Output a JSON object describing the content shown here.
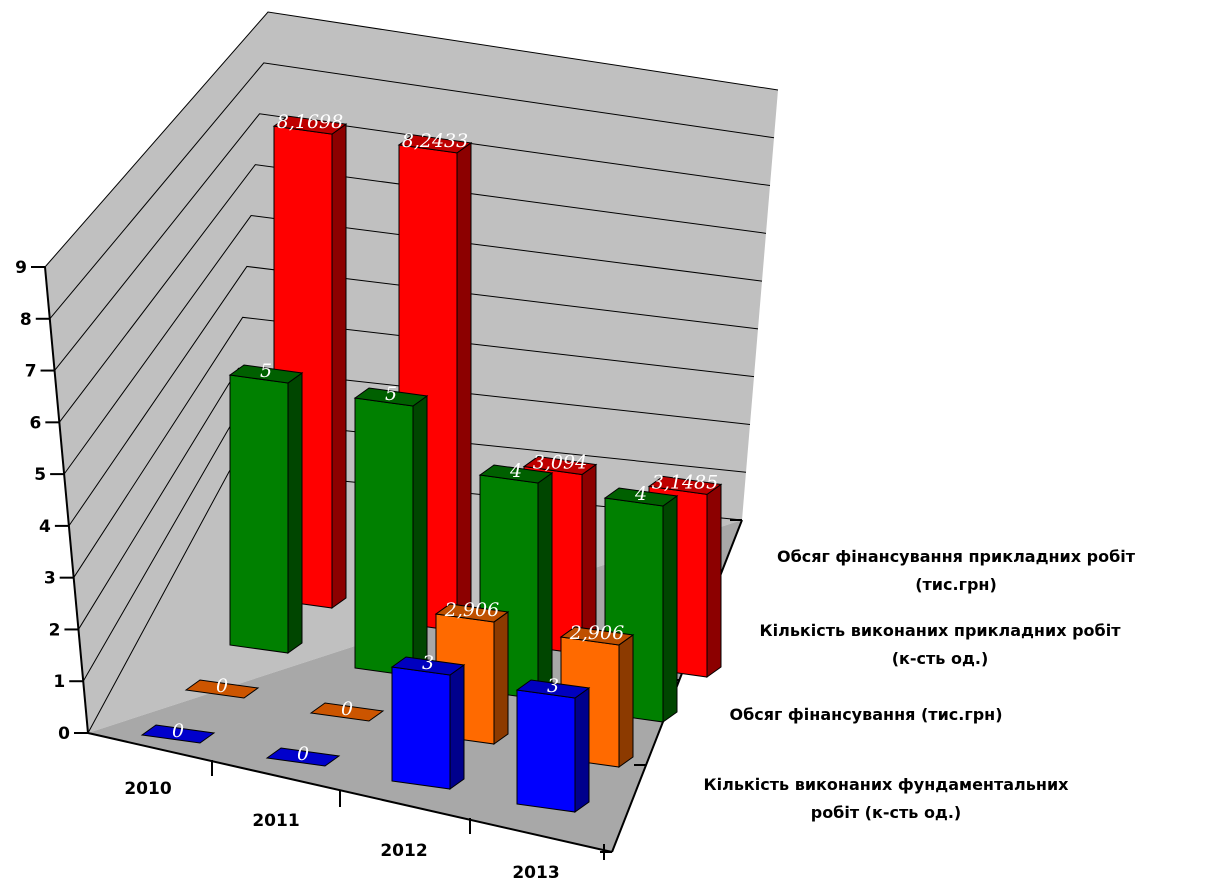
{
  "chart_data": {
    "type": "bar",
    "projection": "3d-perspective",
    "categories": [
      "2010",
      "2011",
      "2012",
      "2013"
    ],
    "yticks": [
      "0",
      "1",
      "2",
      "3",
      "4",
      "5",
      "6",
      "7",
      "8",
      "9"
    ],
    "ylim": [
      0,
      9
    ],
    "grid": true,
    "series": [
      {
        "name_lines": [
          "Кількість виконаних фундаментальних",
          "робіт (к-сть од.)"
        ],
        "color": "#0000ff",
        "values": [
          0,
          0,
          3,
          3
        ],
        "labels": [
          "0",
          "0",
          "3",
          "3"
        ]
      },
      {
        "name_lines": [
          "Обсяг фінансування (тис.грн)"
        ],
        "color": "#ff6a00",
        "values": [
          0,
          0,
          2.906,
          2.906
        ],
        "labels": [
          "0",
          "0",
          "2,906",
          "2,906"
        ]
      },
      {
        "name_lines": [
          "Кількість виконаних прикладних робіт",
          "(к-сть од.)"
        ],
        "color": "#008000",
        "values": [
          5,
          5,
          4,
          4
        ],
        "labels": [
          "5",
          "5",
          "4",
          "4"
        ]
      },
      {
        "name_lines": [
          "Обсяг фінансування прикладних робіт",
          "(тис.грн)"
        ],
        "color": "#ff0000",
        "values": [
          8.1698,
          8.2433,
          3.094,
          3.1485
        ],
        "labels": [
          "8,1698",
          "8,2433",
          "3,094",
          "3,1485"
        ]
      }
    ]
  }
}
